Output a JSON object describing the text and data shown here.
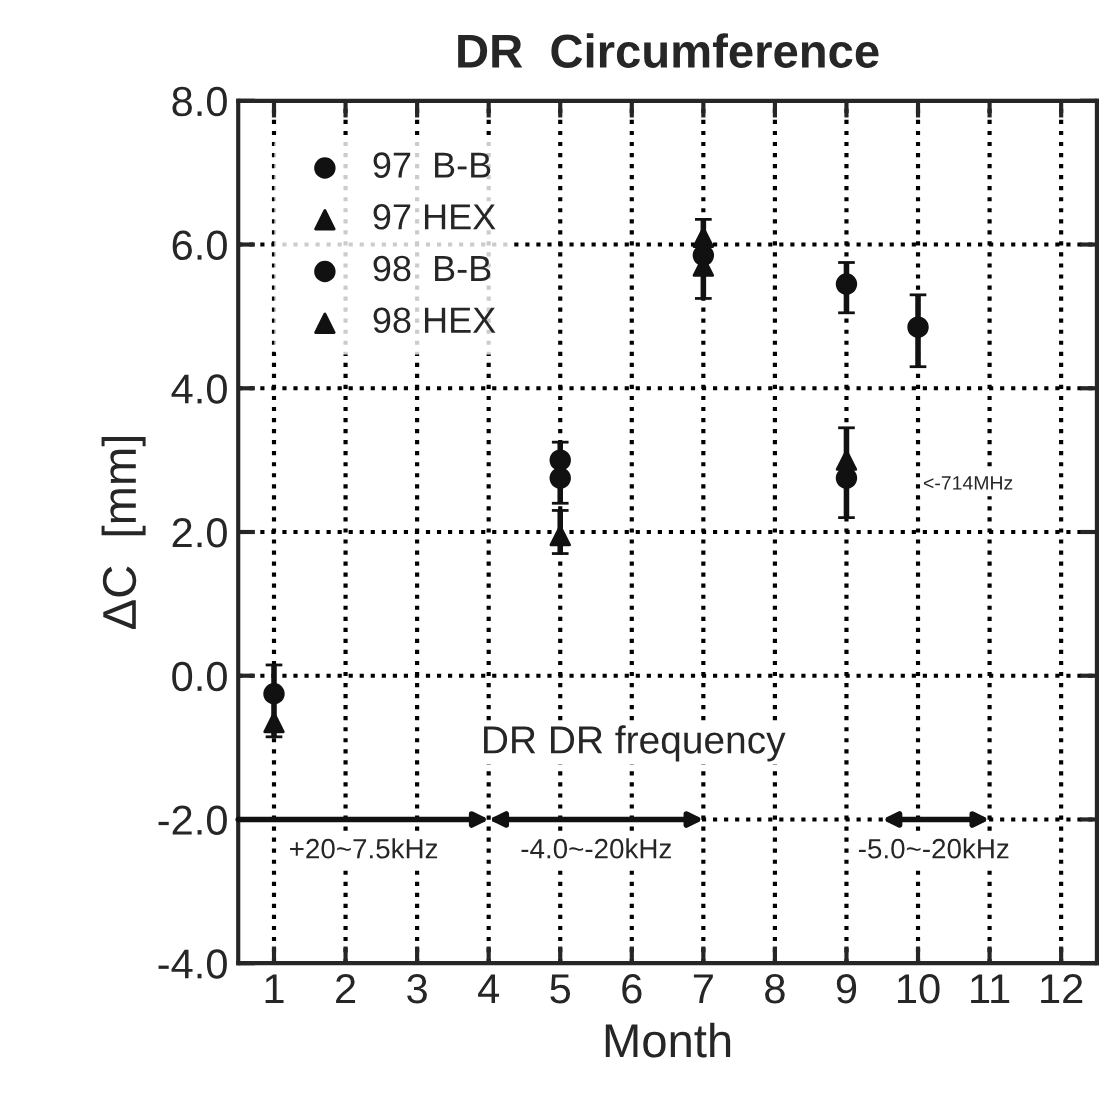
{
  "chart_data": {
    "type": "scatter",
    "title": "DR  Circumference",
    "xlabel": "Month",
    "ylabel": "ΔC  [mm]",
    "xlim": [
      0.5,
      12.5
    ],
    "xticks": [
      1,
      2,
      3,
      4,
      5,
      6,
      7,
      8,
      9,
      10,
      11,
      12
    ],
    "ylim": [
      -4,
      8
    ],
    "yticks": [
      {
        "value": -4,
        "label": "-4.0"
      },
      {
        "value": -2,
        "label": "-2.0"
      },
      {
        "value": 0,
        "label": "0.0"
      },
      {
        "value": 2,
        "label": "2.0"
      },
      {
        "value": 4,
        "label": "4.0"
      },
      {
        "value": 6,
        "label": "6.0"
      },
      {
        "value": 8,
        "label": "8.0"
      }
    ],
    "grid": true,
    "legend": "top left",
    "series": [
      {
        "name": "97  B-B",
        "color": "#111111",
        "marker": "circle",
        "x": [
          1,
          5,
          9
        ],
        "values": [
          -0.25,
          3.0,
          5.45
        ],
        "errors": [
          [
            -0.85,
            0.15
          ],
          [
            2.4,
            3.25
          ],
          [
            5.05,
            5.75
          ]
        ]
      },
      {
        "name": "97 HEX",
        "color": "#111111",
        "marker": "triangle",
        "x": [
          1,
          5,
          7
        ],
        "values": [
          -0.65,
          1.95,
          6.1
        ],
        "errors": [
          null,
          [
            1.7,
            2.3
          ],
          [
            5.25,
            6.35
          ]
        ]
      },
      {
        "name": "98  B-B",
        "color": "#111111",
        "marker": "circle",
        "x": [
          5,
          7,
          9,
          10
        ],
        "values": [
          2.75,
          5.85,
          2.75,
          4.85
        ],
        "errors": [
          null,
          null,
          [
            2.2,
            3.45
          ],
          [
            4.3,
            5.3
          ]
        ]
      },
      {
        "name": "98 HEX",
        "color": "#111111",
        "marker": "triangle",
        "x": [
          7,
          9
        ],
        "values": [
          5.7,
          3.0
        ],
        "errors": [
          null,
          null
        ]
      }
    ],
    "annotations": [
      "DR DR frequency",
      "<-714MHz",
      "+20~7.5kHz",
      "-4.0~-20kHz",
      "-5.0~-20kHz"
    ]
  }
}
